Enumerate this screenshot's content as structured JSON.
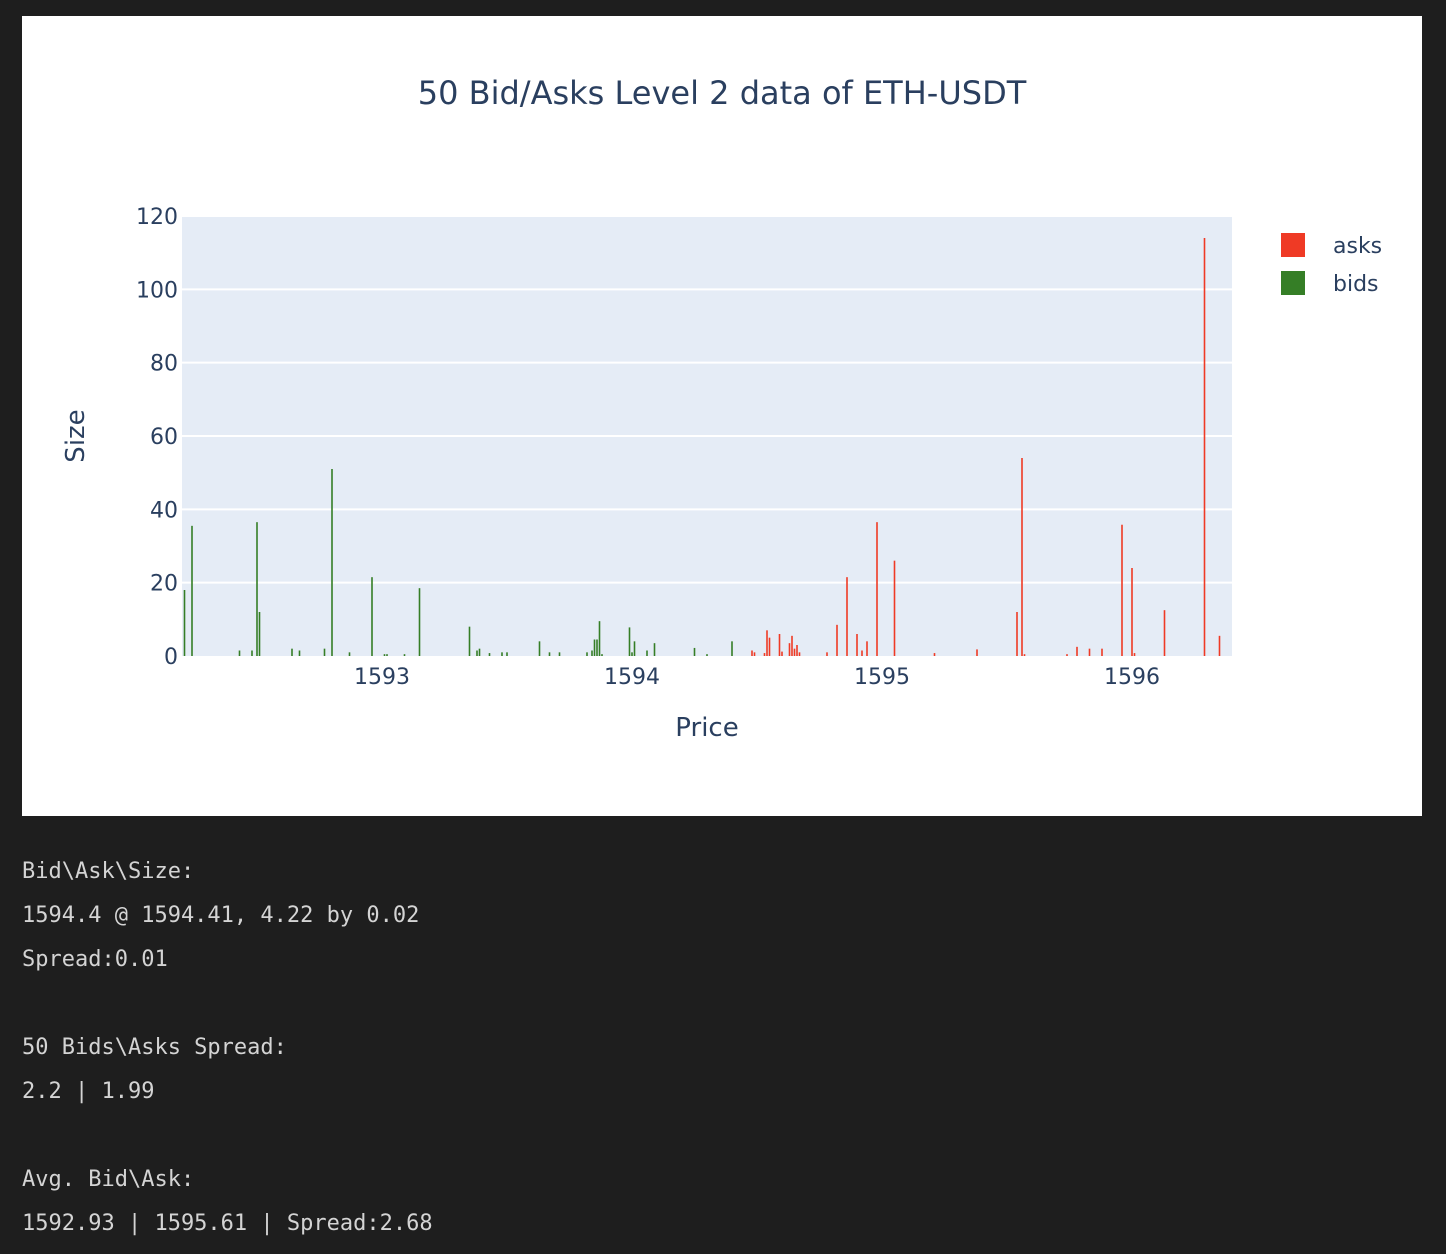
{
  "chart_data": {
    "type": "bar",
    "title": "50 Bid/Asks Level 2 data of ETH-USDT",
    "xlabel": "Price",
    "ylabel": "Size",
    "xlim": [
      1592.2,
      1596.4
    ],
    "ylim": [
      0,
      120
    ],
    "xticks": [
      1593,
      1594,
      1595,
      1596
    ],
    "yticks": [
      0,
      20,
      40,
      60,
      80,
      100,
      120
    ],
    "grid": true,
    "legend_position": "top-right",
    "series": [
      {
        "name": "asks",
        "color": "#ef3a25",
        "x": [
          1594.48,
          1594.49,
          1594.53,
          1594.54,
          1594.55,
          1594.59,
          1594.6,
          1594.63,
          1594.64,
          1594.65,
          1594.66,
          1594.67,
          1594.78,
          1594.82,
          1594.86,
          1594.9,
          1594.92,
          1594.94,
          1594.98,
          1595.05,
          1595.21,
          1595.38,
          1595.54,
          1595.56,
          1595.57,
          1595.74,
          1595.78,
          1595.83,
          1595.88,
          1595.96,
          1596.0,
          1596.01,
          1596.13,
          1596.29,
          1596.35
        ],
        "values": [
          1.5,
          1.0,
          0.8,
          7.0,
          5.0,
          6.0,
          1.2,
          3.5,
          5.5,
          2.0,
          3.0,
          1.0,
          1.0,
          8.5,
          21.5,
          6.0,
          1.5,
          4.0,
          36.5,
          26.0,
          0.8,
          1.8,
          12.0,
          54.0,
          0.5,
          0.5,
          2.5,
          2.0,
          2.0,
          35.8,
          24.0,
          0.8,
          12.5,
          114.0,
          5.5
        ]
      },
      {
        "name": "bids",
        "color": "#357e26",
        "x": [
          1592.21,
          1592.24,
          1592.43,
          1592.48,
          1592.5,
          1592.51,
          1592.64,
          1592.67,
          1592.77,
          1592.8,
          1592.87,
          1592.96,
          1593.01,
          1593.02,
          1593.09,
          1593.15,
          1593.35,
          1593.38,
          1593.39,
          1593.43,
          1593.48,
          1593.5,
          1593.63,
          1593.67,
          1593.71,
          1593.82,
          1593.84,
          1593.85,
          1593.86,
          1593.87,
          1593.88,
          1593.99,
          1594.0,
          1594.01,
          1594.06,
          1594.09,
          1594.25,
          1594.3,
          1594.4
        ],
        "values": [
          18.0,
          35.5,
          1.5,
          1.5,
          36.5,
          12.0,
          2.0,
          1.5,
          2.0,
          51.0,
          1.0,
          21.5,
          0.5,
          0.5,
          0.5,
          18.5,
          8.0,
          1.5,
          2.0,
          0.8,
          1.0,
          1.0,
          4.0,
          1.0,
          1.0,
          1.0,
          1.5,
          4.5,
          4.5,
          9.5,
          0.5,
          7.8,
          1.0,
          4.0,
          1.5,
          3.5,
          2.2,
          0.5,
          4.0
        ]
      }
    ]
  },
  "output": {
    "section1_header": "Bid\\Ask\\Size:",
    "section1_line1": "1594.4 @ 1594.41, 4.22 by 0.02",
    "section1_line2": "Spread:0.01",
    "section2_header": "50 Bids\\Asks Spread:",
    "section2_line1": "2.2 | 1.99",
    "section3_header": "Avg. Bid\\Ask:",
    "section3_line1": "1592.93 | 1595.61 | Spread:2.68"
  }
}
